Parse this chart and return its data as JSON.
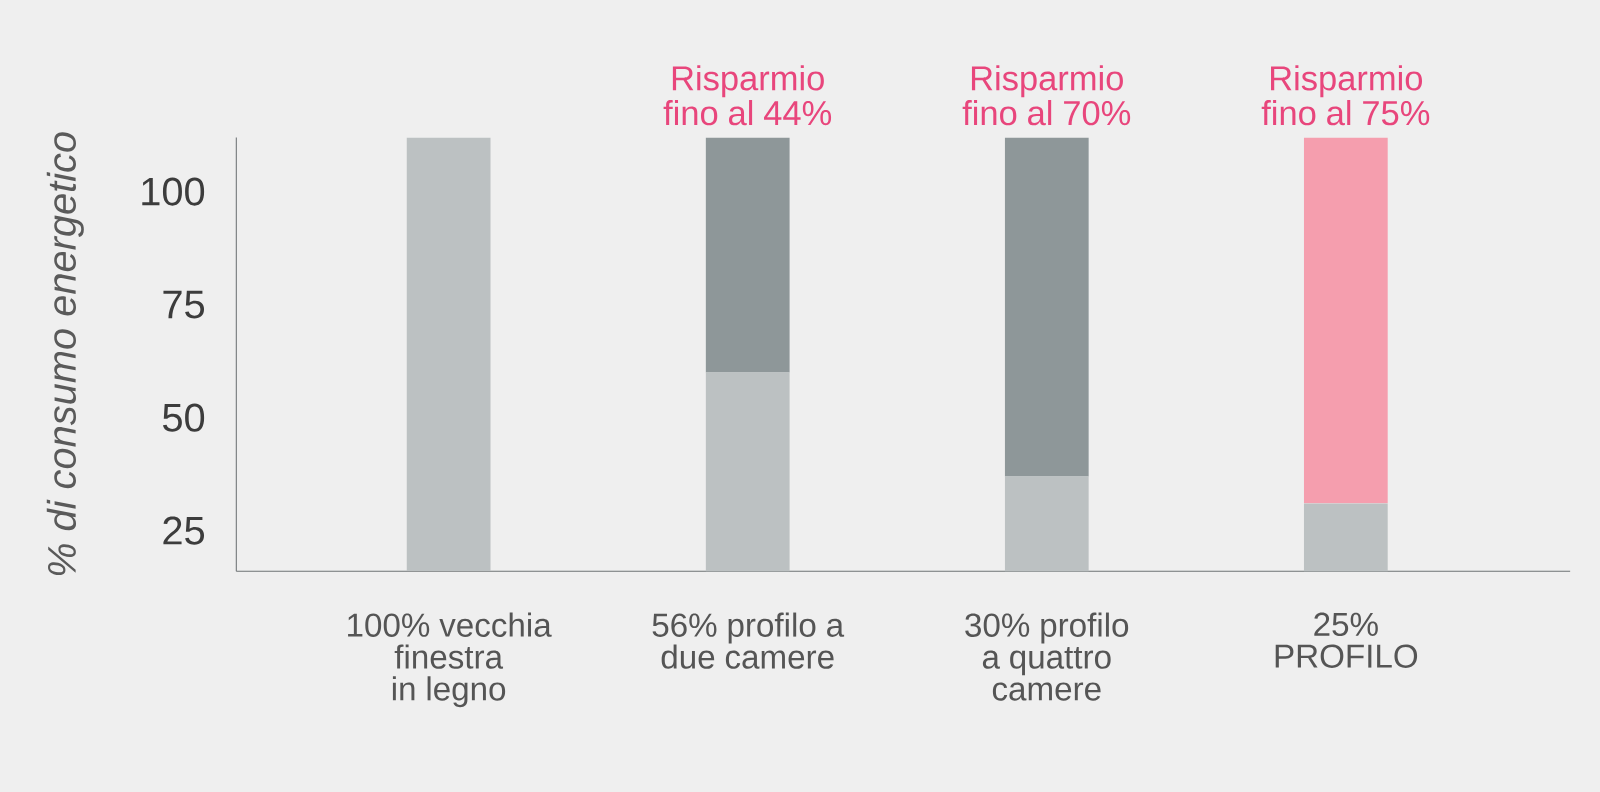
{
  "chart_data": {
    "type": "bar",
    "stacked": true,
    "ylabel": "% di consumo energetico",
    "categories": [
      "100% vecchia finestra in legno",
      "56% profilo a due camere",
      "30% profilo a quattro camere",
      "25% PROFILO"
    ],
    "series": [
      {
        "color": "#bcc1c2",
        "values": [
          112,
          60,
          37,
          31
        ]
      },
      {
        "colors": [
          "#8e9799",
          "#8e9799",
          "#8e9799",
          "#f59eae"
        ],
        "values": [
          null,
          52,
          75,
          81
        ]
      }
    ],
    "ylim": [
      16,
      112
    ],
    "yticks": [
      25,
      50,
      75,
      100
    ],
    "annotations": [
      "Risparmio fino al 44%",
      "Risparmio fino al 70%",
      "Risparmio fino al 75%"
    ]
  }
}
